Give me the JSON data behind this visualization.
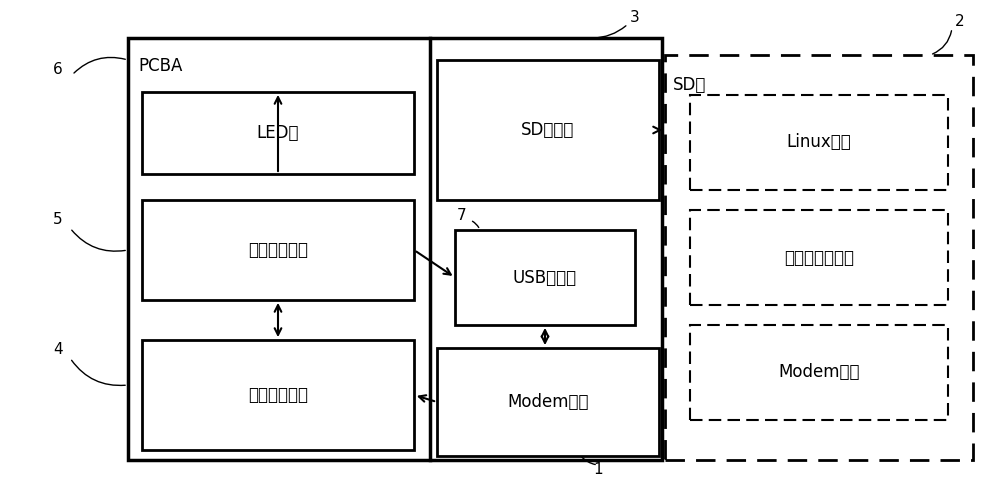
{
  "fig_width": 10.0,
  "fig_height": 4.9,
  "dpi": 100,
  "bg_color": "#ffffff",
  "labels": {
    "pcba": "PCBA",
    "sd_card": "SD卡",
    "led": "LED灯",
    "auto_test": "自动测试模块",
    "auto_match": "自动匹配模块",
    "sd_ctrl": "SD控制器",
    "usb_ctrl": "USB控制器",
    "modem_mod": "Modem模块",
    "linux": "Linux内核",
    "minifs": "最小根文件系统",
    "modem_drv": "Modem驱动",
    "n1": "1",
    "n2": "2",
    "n3": "3",
    "n4": "4",
    "n5": "5",
    "n6": "6",
    "n7": "7"
  }
}
